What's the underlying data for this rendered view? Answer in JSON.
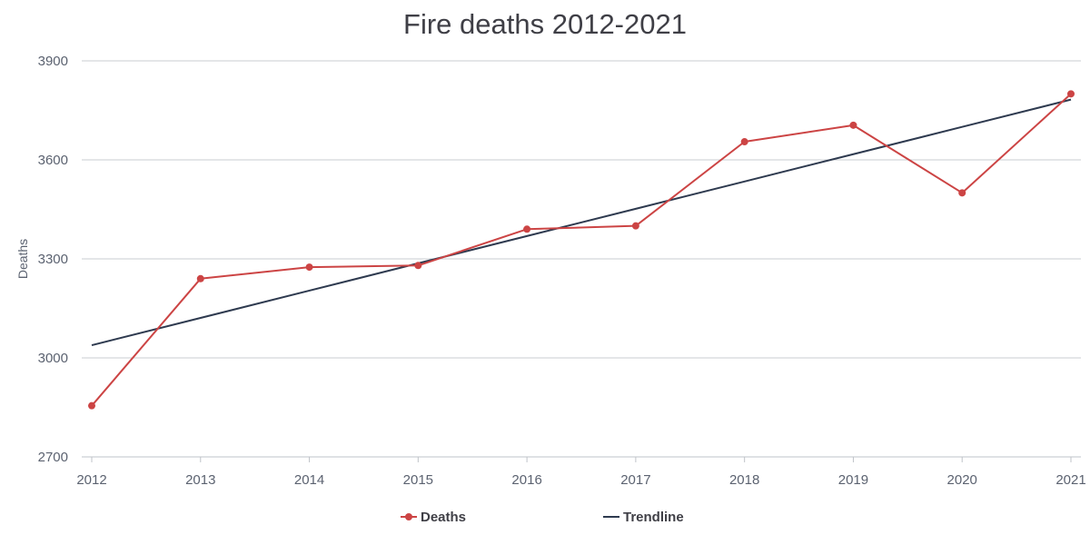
{
  "chart_data": {
    "type": "line",
    "title": "Fire deaths 2012-2021",
    "xlabel": "",
    "ylabel": "Deaths",
    "categories": [
      "2012",
      "2013",
      "2014",
      "2015",
      "2016",
      "2017",
      "2018",
      "2019",
      "2020",
      "2021"
    ],
    "y_ticks": [
      "2700",
      "3000",
      "3300",
      "3600",
      "3900"
    ],
    "ylim": [
      2700,
      3900
    ],
    "grid": true,
    "legend_position": "bottom-center",
    "series": [
      {
        "name": "Deaths",
        "color": "#cc4444",
        "marker": "circle",
        "values": [
          2855,
          3240,
          3275,
          3280,
          3390,
          3400,
          3655,
          3705,
          3500,
          3800
        ]
      },
      {
        "name": "Trendline",
        "color": "#2e3a4f",
        "marker": "none",
        "values": [
          3038.4,
          3121.1,
          3203.8,
          3286.5,
          3369.2,
          3451.8,
          3534.5,
          3617.2,
          3699.9,
          3782.6
        ]
      }
    ]
  }
}
